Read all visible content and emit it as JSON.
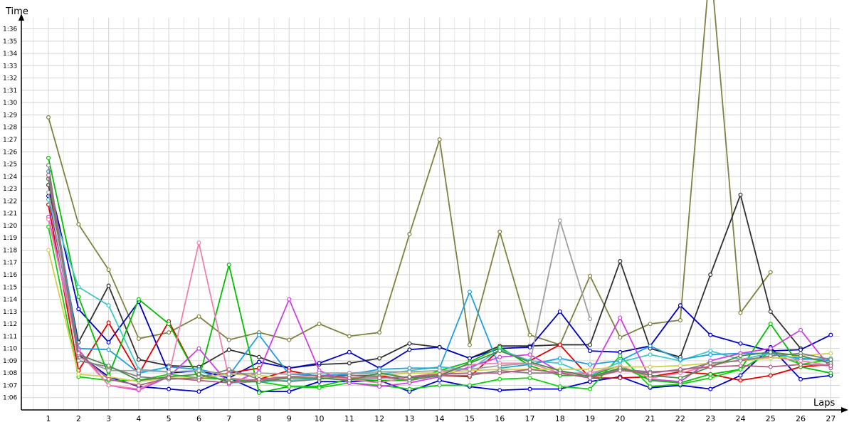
{
  "chart_data": {
    "type": "line",
    "ylabel": "Time",
    "xlabel": "Laps",
    "x": [
      1,
      2,
      3,
      4,
      5,
      6,
      7,
      8,
      9,
      10,
      11,
      12,
      13,
      14,
      15,
      16,
      17,
      18,
      19,
      20,
      21,
      22,
      23,
      24,
      25,
      26,
      27
    ],
    "y_unit": "seconds",
    "y_tick_labels": [
      "1:06",
      "1:07",
      "1:08",
      "1:09",
      "1:10",
      "1:11",
      "1:12",
      "1:13",
      "1:14",
      "1:15",
      "1:16",
      "1:17",
      "1:18",
      "1:19",
      "1:20",
      "1:21",
      "1:22",
      "1:23",
      "1:24",
      "1:25",
      "1:26",
      "1:27",
      "1:28",
      "1:29",
      "1:30",
      "1:31",
      "1:32",
      "1:33",
      "1:34",
      "1:35",
      "1:36"
    ],
    "y_ticks": [
      66,
      67,
      68,
      69,
      70,
      71,
      72,
      73,
      74,
      75,
      76,
      77,
      78,
      79,
      80,
      81,
      82,
      83,
      84,
      85,
      86,
      87,
      88,
      89,
      90,
      91,
      92,
      93,
      94,
      95,
      96
    ],
    "ylim": [
      65,
      96.9
    ],
    "xlim": [
      0.1,
      27.3
    ],
    "grid": true,
    "series": [
      {
        "color": "#808040",
        "values": [
          88.8,
          80.1,
          76.4,
          70.8,
          71.3,
          72.6,
          70.7,
          71.3,
          70.7,
          72.0,
          71.0,
          71.3,
          79.3,
          87.0,
          70.3,
          79.5,
          71.1,
          70.3,
          75.9,
          70.9,
          72.0,
          72.3,
          null,
          72.9,
          76.2,
          null,
          null
        ],
        "spike": [
          22,
          23,
          24
        ]
      },
      {
        "color": "#303030",
        "values": [
          83.3,
          70.5,
          75.1,
          69.1,
          68.6,
          68.5,
          69.9,
          69.3,
          68.4,
          68.7,
          68.8,
          69.2,
          70.4,
          70.1,
          69.2,
          70.2,
          70.2,
          70.3,
          70.3,
          77.1,
          70.0,
          69.3,
          76.0,
          82.5,
          73.0,
          70.0,
          null
        ]
      },
      {
        "color": "#0000c0",
        "values": [
          83.8,
          73.2,
          70.5,
          73.8,
          68.0,
          68.2,
          67.6,
          68.9,
          68.4,
          68.8,
          69.7,
          68.4,
          69.9,
          70.1,
          69.2,
          70.0,
          70.1,
          73.0,
          69.8,
          69.7,
          70.2,
          73.5,
          71.1,
          70.4,
          69.8,
          69.9,
          71.1
        ]
      },
      {
        "color": "#0000cc",
        "values": [
          82.4,
          69.5,
          67.7,
          66.9,
          66.7,
          66.5,
          67.6,
          66.5,
          66.5,
          67.3,
          67.3,
          67.4,
          66.5,
          67.4,
          66.9,
          66.6,
          66.7,
          66.7,
          67.3,
          67.7,
          66.8,
          67.0,
          66.7,
          67.8,
          70.1,
          67.5,
          67.8
        ]
      },
      {
        "color": "#e00000",
        "values": [
          81.7,
          68.2,
          72.1,
          67.9,
          72.2,
          67.5,
          68.0,
          68.4,
          null,
          null,
          null,
          null,
          null,
          null,
          null,
          null,
          null,
          null,
          null,
          null,
          null,
          null,
          null,
          null,
          null,
          null,
          null
        ],
        "extra": true
      },
      {
        "color": "#e00000",
        "values": [
          null,
          null,
          null,
          null,
          null,
          null,
          null,
          67.5,
          68.2,
          67.7,
          67.8,
          67.8,
          67.4,
          67.8,
          67.7,
          69.9,
          69.0,
          70.3,
          67.6,
          67.6,
          67.7,
          68.1,
          67.9,
          67.4,
          67.8,
          68.5,
          68.7
        ]
      },
      {
        "color": "#00c000",
        "values": [
          85.5,
          74.2,
          67.8,
          74.0,
          72.0,
          67.5,
          76.8,
          66.4,
          66.9,
          66.9,
          67.5,
          67.4,
          67.4,
          68.2,
          68.9,
          70.1,
          68.6,
          67.8,
          67.8,
          68.6,
          67.4,
          67.2,
          67.9,
          68.3,
          72.0,
          68.5,
          68.0
        ]
      },
      {
        "color": "#10d010",
        "values": [
          79.9,
          67.7,
          67.4,
          67.4,
          67.9,
          67.6,
          67.5,
          67.3,
          66.9,
          66.8,
          67.2,
          67.0,
          66.7,
          67.0,
          67.0,
          67.5,
          67.6,
          66.9,
          66.7,
          69.4,
          66.9,
          67.1,
          67.6,
          68.3,
          69.7,
          68.7,
          69.1
        ]
      },
      {
        "color": "#40c8c8",
        "values": [
          82.1,
          75.0,
          73.5,
          68.3,
          68.1,
          68.2,
          67.2,
          67.3,
          67.4,
          67.6,
          68.0,
          67.9,
          68.2,
          68.5,
          68.3,
          69.9,
          69.0,
          68.8,
          67.8,
          68.9,
          69.5,
          69.0,
          69.8,
          69.1,
          69.6,
          69.1,
          69.2
        ]
      },
      {
        "color": "#20a0e0",
        "values": [
          84.4,
          70.0,
          69.9,
          68.0,
          68.5,
          68.3,
          67.8,
          71.1,
          67.9,
          67.8,
          67.9,
          68.3,
          68.4,
          68.4,
          74.6,
          68.4,
          68.7,
          69.2,
          68.7,
          69.0,
          70.2,
          69.1,
          69.5,
          69.6,
          69.6,
          69.2,
          69.0
        ]
      },
      {
        "color": "#d040e0",
        "values": [
          80.7,
          69.9,
          67.0,
          66.6,
          67.7,
          70.0,
          67.1,
          68.1,
          74.0,
          68.2,
          67.2,
          66.9,
          67.2,
          67.7,
          68.5,
          69.3,
          69.5,
          68.1,
          67.9,
          72.5,
          67.5,
          67.3,
          69.0,
          69.6,
          70.0,
          71.5,
          68.4
        ]
      },
      {
        "color": "#f080b0",
        "values": [
          80.5,
          69.7,
          67.0,
          66.7,
          67.8,
          78.6,
          67.6,
          67.4,
          67.6,
          67.6,
          67.5,
          67.2,
          67.7,
          68.0,
          68.7,
          68.8,
          68.8,
          68.0,
          68.0,
          68.6,
          67.6,
          68.0,
          68.6,
          69.1,
          69.3,
          69.0,
          68.6
        ]
      },
      {
        "color": "#d0d050",
        "values": [
          78.0,
          67.9,
          67.7,
          67.3,
          67.6,
          67.6,
          67.9,
          67.8,
          67.6,
          67.6,
          67.6,
          67.8,
          68.0,
          68.0,
          68.2,
          68.3,
          68.3,
          68.3,
          68.3,
          68.5,
          68.5,
          68.6,
          68.8,
          69.0,
          69.2,
          69.4,
          69.6
        ]
      },
      {
        "color": "#a0a0a0",
        "values": [
          82.7,
          69.3,
          68.2,
          68.2,
          68.1,
          68.2,
          67.9,
          68.0,
          67.9,
          68.0,
          68.0,
          68.1,
          68.1,
          68.2,
          68.3,
          68.6,
          68.8,
          80.4,
          72.4,
          null,
          null,
          null,
          null,
          null,
          null,
          null,
          null
        ]
      },
      {
        "color": "#808080",
        "values": [
          84.9,
          69.0,
          68.5,
          67.7,
          67.5,
          67.6,
          68.3,
          67.5,
          67.3,
          67.5,
          67.8,
          67.7,
          67.4,
          67.8,
          67.8,
          68.2,
          68.0,
          68.0,
          67.6,
          68.3,
          68.1,
          68.2,
          68.8,
          69.0,
          69.4,
          69.6,
          69.1
        ]
      },
      {
        "color": "#4a8a4a",
        "values": [
          83.8,
          69.5,
          68.6,
          67.4,
          67.7,
          67.9,
          67.3,
          67.3,
          67.6,
          67.6,
          67.4,
          68.0,
          67.6,
          67.8,
          68.8,
          69.8,
          68.9,
          68.2,
          67.7,
          68.4,
          67.8,
          67.6,
          68.5,
          69.4,
          69.7,
          69.4,
          68.8
        ]
      },
      {
        "color": "#b06080",
        "values": [
          84.1,
          69.6,
          67.5,
          67.0,
          67.6,
          67.4,
          67.2,
          67.5,
          67.7,
          67.8,
          67.6,
          67.6,
          67.7,
          67.9,
          68.0,
          68.0,
          68.3,
          68.0,
          67.6,
          68.2,
          68.0,
          68.3,
          68.5,
          68.6,
          68.5,
          68.7,
          68.6
        ]
      }
    ]
  }
}
